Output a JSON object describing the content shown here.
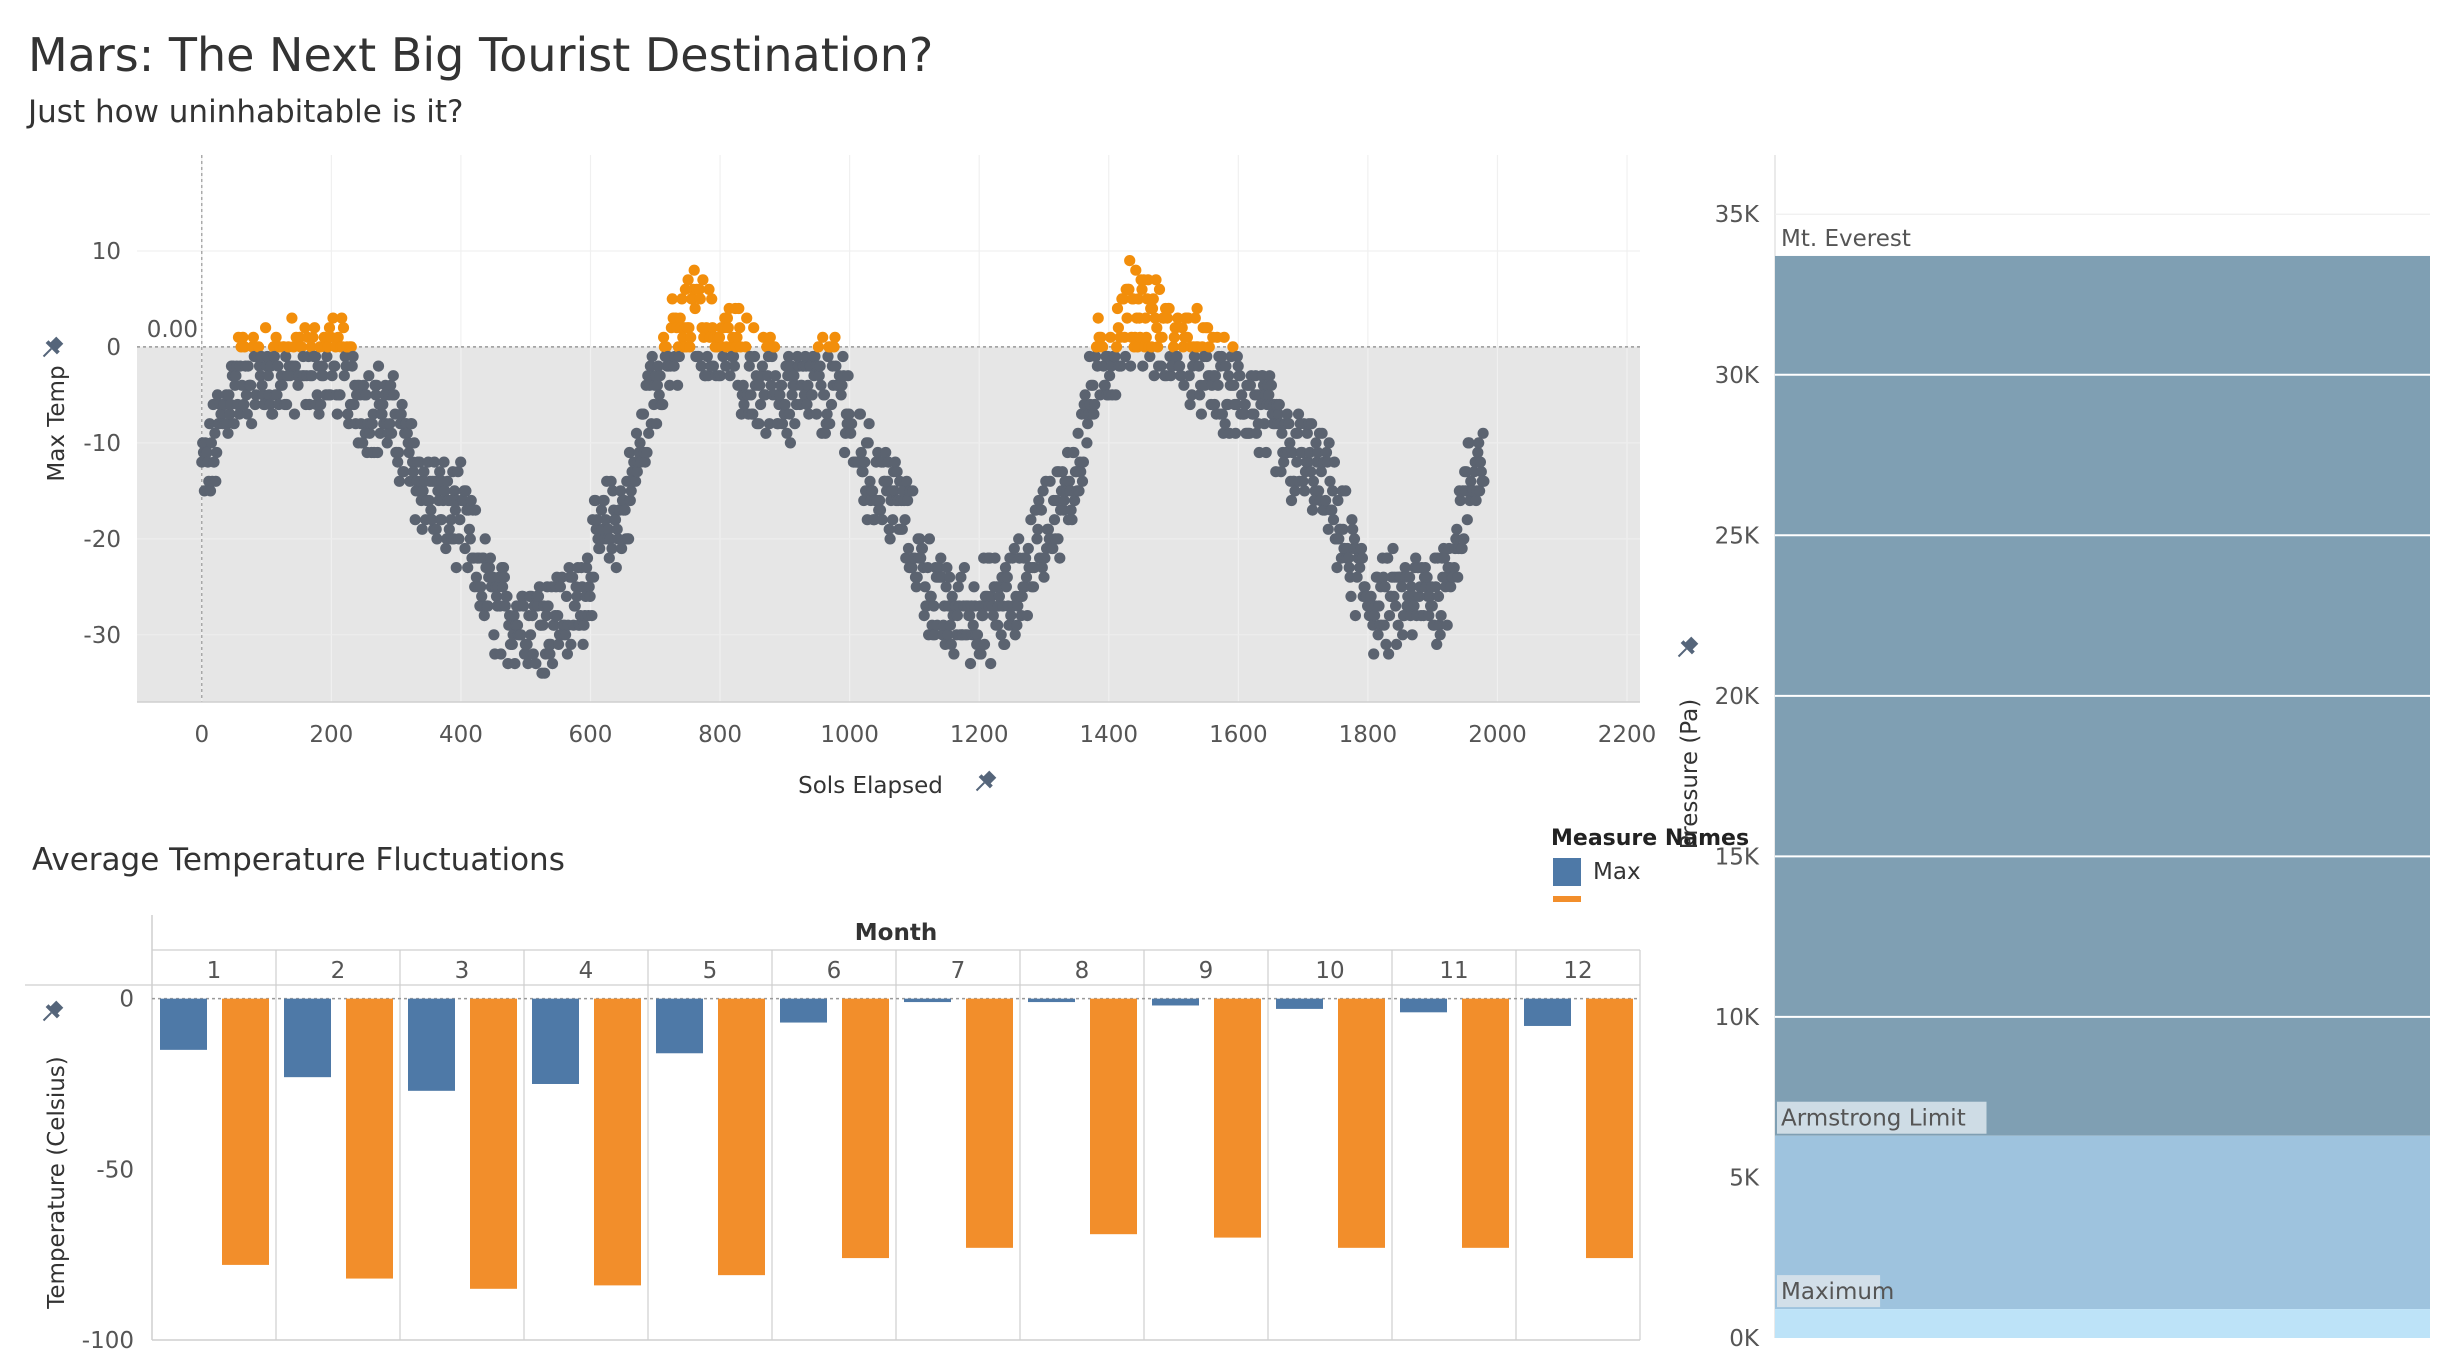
{
  "title": "Mars: The Next Big Tourist Destination?",
  "subtitle": "Just how uninhabitable is it?",
  "colors": {
    "below": "#5b6370",
    "above": "#f28e0b",
    "max": "#4e79a7",
    "min": "#f28e2b",
    "pressure_high": "#7f9fb3",
    "pressure_mid": "#9ec3de",
    "pressure_low": "#bde3f8"
  },
  "chart_data": [
    {
      "type": "scatter",
      "xlabel": "Sols Elapsed",
      "ylabel": "Max Temp",
      "xlim": [
        -100,
        2220
      ],
      "ylim": [
        -37,
        20
      ],
      "x_ticks": [
        "0",
        "200",
        "400",
        "600",
        "800",
        "1000",
        "1200",
        "1400",
        "1600",
        "1800",
        "2000",
        "2200"
      ],
      "y_ticks": [
        "10",
        "0",
        "-10",
        "-20",
        "-30"
      ],
      "reference_line": {
        "value": 0,
        "label": "0.00"
      },
      "shaded_below": 0,
      "points_generator": {
        "x_range": [
          0,
          1980
        ],
        "period_sols": 687,
        "anchors": [
          [
            0,
            -13
          ],
          [
            60,
            -3
          ],
          [
            200,
            -2
          ],
          [
            260,
            -6
          ],
          [
            380,
            -17
          ],
          [
            470,
            -28
          ],
          [
            560,
            -28
          ],
          [
            640,
            -18
          ],
          [
            720,
            -1
          ],
          [
            760,
            3
          ],
          [
            800,
            0
          ],
          [
            900,
            -5
          ],
          [
            980,
            -4
          ],
          [
            1040,
            -14
          ],
          [
            1160,
            -28
          ],
          [
            1240,
            -27
          ],
          [
            1320,
            -17
          ],
          [
            1400,
            -1
          ],
          [
            1440,
            4
          ],
          [
            1500,
            0
          ],
          [
            1600,
            -5
          ],
          [
            1700,
            -12
          ],
          [
            1820,
            -27
          ],
          [
            1900,
            -26
          ],
          [
            1980,
            -12
          ]
        ]
      }
    },
    {
      "type": "bar",
      "title": "Average Temperature Fluctuations",
      "column_header": "Month",
      "xlabel": "",
      "ylabel": "Temperature (Celsius)",
      "categories": [
        "1",
        "2",
        "3",
        "4",
        "5",
        "6",
        "7",
        "8",
        "9",
        "10",
        "11",
        "12"
      ],
      "series": [
        {
          "name": "Max",
          "values": [
            -15,
            -23,
            -27,
            -25,
            -16,
            -7,
            -1,
            -1,
            -2,
            -3,
            -4,
            -8
          ]
        },
        {
          "name": "",
          "values": [
            -78,
            -82,
            -85,
            -84,
            -81,
            -76,
            -73,
            -69,
            -70,
            -73,
            -73,
            -76
          ]
        }
      ],
      "ylim": [
        -100,
        4
      ],
      "y_ticks": [
        "0",
        "-50",
        "-100"
      ],
      "legend": {
        "title": "Measure Names",
        "position": "top-right"
      }
    },
    {
      "type": "area",
      "ylabel": "Pressure (Pa)",
      "ylim": [
        0,
        37000
      ],
      "y_ticks": [
        "35K",
        "30K",
        "25K",
        "20K",
        "15K",
        "10K",
        "5K",
        "0K"
      ],
      "bands": [
        {
          "label": "Mt. Everest",
          "value": 33700
        },
        {
          "label": "Armstrong Limit",
          "value": 6300
        },
        {
          "label": "Maximum",
          "value": 900
        }
      ]
    }
  ]
}
